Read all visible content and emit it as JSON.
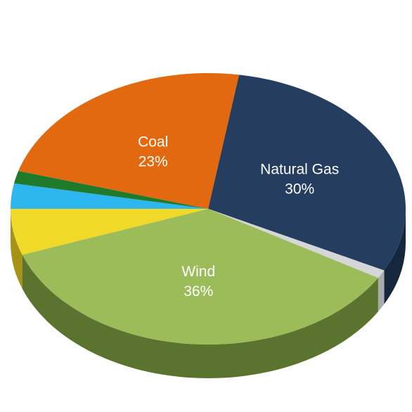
{
  "chart_data": {
    "type": "pie",
    "slices": [
      {
        "name": "Natural Gas",
        "label": "Natural Gas",
        "value_label": "30%",
        "value": 30,
        "color": "#253d5f",
        "side_color": "#16263c"
      },
      {
        "name": "",
        "label": "",
        "value_label": "",
        "value": 1,
        "color": "#d4d6d8",
        "side_color": "#a9abad"
      },
      {
        "name": "Wind",
        "label": "Wind",
        "value_label": "36%",
        "value": 36,
        "color": "#9bbc58",
        "side_color": "#5a7430"
      },
      {
        "name": "",
        "label": "",
        "value_label": "",
        "value": 5.5,
        "color": "#f0d928",
        "side_color": "#a69214"
      },
      {
        "name": "",
        "label": "",
        "value_label": "",
        "value": 3,
        "color": "#2eb6ee",
        "side_color": "#1a7ea8"
      },
      {
        "name": "",
        "label": "",
        "value_label": "",
        "value": 1.5,
        "color": "#1f7a2c",
        "side_color": "#124b1a"
      },
      {
        "name": "Coal",
        "label": "Coal",
        "value_label": "23%",
        "value": 23,
        "color": "#e2690f",
        "side_color": "#9c4608"
      }
    ],
    "start_direction": "top",
    "style": "3d-tilted"
  }
}
